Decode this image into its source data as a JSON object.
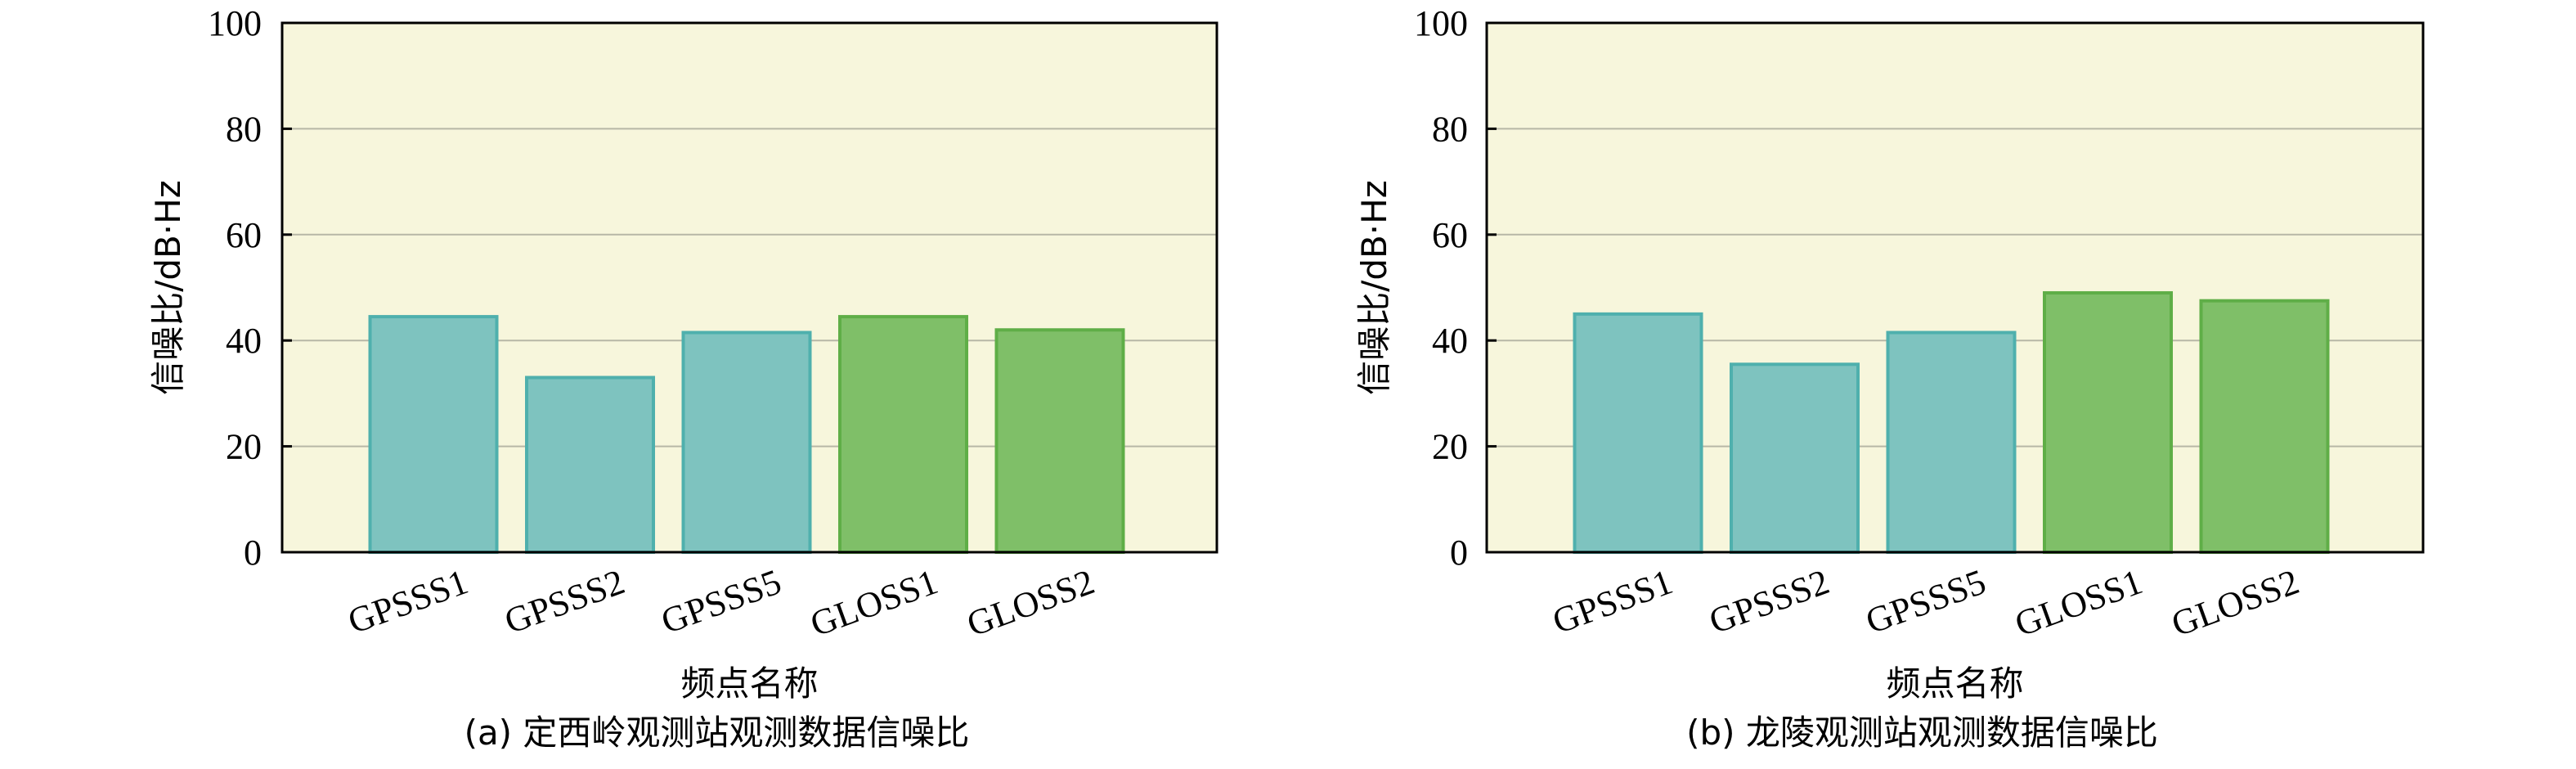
{
  "chart_data": [
    {
      "type": "bar",
      "caption": "(a) 定西岭观测站观测数据信噪比",
      "xlabel": "频点名称",
      "ylabel": "信噪比/dB·Hz",
      "categories": [
        "GPSSS1",
        "GPSSS2",
        "GPSSS5",
        "GLOSS1",
        "GLOSS2"
      ],
      "values": [
        44.5,
        33,
        41.5,
        44.5,
        42
      ],
      "bar_colors": [
        "#7ec3bf",
        "#7ec3bf",
        "#7ec3bf",
        "#7fbf68",
        "#7fbf68"
      ],
      "ylim": [
        0,
        100
      ],
      "yticks": [
        0,
        20,
        40,
        60,
        80,
        100
      ],
      "grid": true,
      "legend": "none"
    },
    {
      "type": "bar",
      "caption": "(b) 龙陵观测站观测数据信噪比",
      "xlabel": "频点名称",
      "ylabel": "信噪比/dB·Hz",
      "categories": [
        "GPSSS1",
        "GPSSS2",
        "GPSSS5",
        "GLOSS1",
        "GLOSS2"
      ],
      "values": [
        45,
        35.5,
        41.5,
        49,
        47.5
      ],
      "bar_colors": [
        "#7ec3bf",
        "#7ec3bf",
        "#7ec3bf",
        "#7fbf68",
        "#7fbf68"
      ],
      "ylim": [
        0,
        100
      ],
      "yticks": [
        0,
        20,
        40,
        60,
        80,
        100
      ],
      "grid": true,
      "legend": "none"
    }
  ],
  "colors": {
    "plot_background": "#f7f6dc",
    "gridline": "#b7b7a6",
    "gps_bar": "#7ec3bf",
    "gps_bar_edge": "#4fb0ad",
    "glo_bar": "#7fbf68",
    "glo_bar_edge": "#5fae47"
  }
}
